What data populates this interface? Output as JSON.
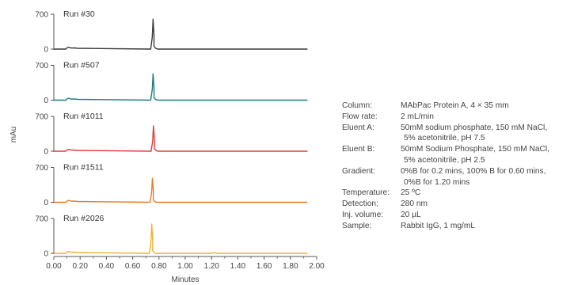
{
  "chart_data": {
    "type": "line",
    "ylabel": "mAu",
    "xlabel": "Minutes",
    "xlim": [
      0,
      2
    ],
    "x_ticks": [
      "0.00",
      "0.20",
      "0.40",
      "0.60",
      "0.80",
      "1.00",
      "1.20",
      "1.40",
      "1.60",
      "1.80",
      "2.00"
    ],
    "x_tick_values": [
      0,
      0.2,
      0.4,
      0.6,
      0.8,
      1.0,
      1.2,
      1.4,
      1.6,
      1.8,
      2.0
    ],
    "y_ticks": [
      "0",
      "700"
    ],
    "y_tick_values": [
      0,
      700
    ],
    "ylim": [
      0,
      700
    ],
    "x_end": 1.93,
    "series": [
      {
        "name": "Run #30",
        "color": "#3a3a3a",
        "x": [
          0.11,
          0.755,
          0.762
        ],
        "y": [
          45,
          600,
          200
        ]
      },
      {
        "name": "Run #507",
        "color": "#1f7a80",
        "x": [
          0.11,
          0.755,
          0.762
        ],
        "y": [
          45,
          530,
          180
        ]
      },
      {
        "name": "Run #1011",
        "color": "#e03a3a",
        "x": [
          0.11,
          0.758,
          0.765
        ],
        "y": [
          45,
          510,
          170
        ]
      },
      {
        "name": "Run #1511",
        "color": "#ea7a22",
        "x": [
          0.11,
          0.75,
          0.757
        ],
        "y": [
          45,
          480,
          160
        ]
      },
      {
        "name": "Run #2026",
        "color": "#f0b030",
        "x": [
          0.11,
          0.745,
          0.752,
          1.22
        ],
        "y": [
          45,
          590,
          190,
          15
        ]
      }
    ]
  },
  "conditions": {
    "column": {
      "label": "Column:",
      "value": "MAbPac Protein A, 4 × 35 mm"
    },
    "flow_rate": {
      "label": "Flow rate:",
      "value": "2 mL/min"
    },
    "eluent_a": {
      "label": "Eluent A:",
      "value": "50mM sodium phosphate, 150 mM NaCl,",
      "cont": "5% acetonitrile, pH 7.5"
    },
    "eluent_b": {
      "label": "Eluent B:",
      "value": "50mM Sodium Phosphate, 150 mM NaCl,",
      "cont": "5% acetonitrile, pH 2.5"
    },
    "gradient": {
      "label": "Gradient:",
      "value": "0%B for 0.2 mins, 100% B for 0.60 mins,",
      "cont": "0%B for 1.20 mins"
    },
    "temperature": {
      "label": "Temperature:",
      "value": "25 ºC"
    },
    "detection": {
      "label": "Detection:",
      "value": "280 nm"
    },
    "inj_volume": {
      "label": "Inj. volume:",
      "value": "20 µL"
    },
    "sample": {
      "label": "Sample:",
      "value": "Rabbit IgG, 1 mg/mL"
    }
  }
}
